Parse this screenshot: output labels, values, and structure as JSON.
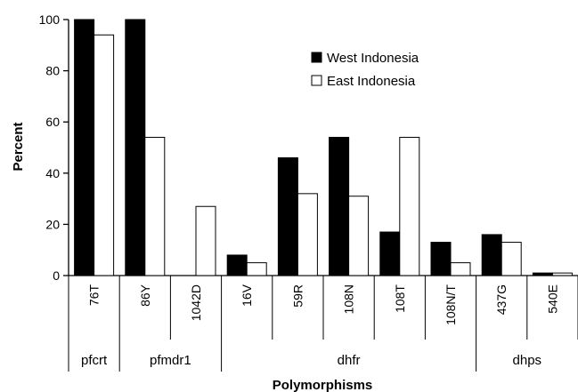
{
  "chart_data": {
    "type": "bar",
    "ylabel": "Percent",
    "xlabel": "Polymorphisms",
    "ylim": [
      0,
      100
    ],
    "yticks": [
      "0",
      "20",
      "40",
      "60",
      "80",
      "100"
    ],
    "categories": [
      "76T",
      "86Y",
      "1042D",
      "16V",
      "59R",
      "108N",
      "108T",
      "108N/T",
      "437G",
      "540E"
    ],
    "series": [
      {
        "name": "West Indonesia",
        "color": "#000000",
        "values": [
          100,
          100,
          0,
          8,
          46,
          54,
          17,
          13,
          16,
          1
        ]
      },
      {
        "name": "East Indonesia",
        "color": "#ffffff",
        "values": [
          94,
          54,
          27,
          5,
          32,
          31,
          54,
          5,
          13,
          1
        ]
      }
    ],
    "groups": [
      {
        "label": "pfcrt",
        "span": [
          0,
          0
        ]
      },
      {
        "label": "pfmdr1",
        "span": [
          1,
          2
        ]
      },
      {
        "label": "dhfr",
        "span": [
          3,
          7
        ]
      },
      {
        "label": "dhps",
        "span": [
          8,
          9
        ]
      }
    ],
    "legend_position": "top-right"
  }
}
